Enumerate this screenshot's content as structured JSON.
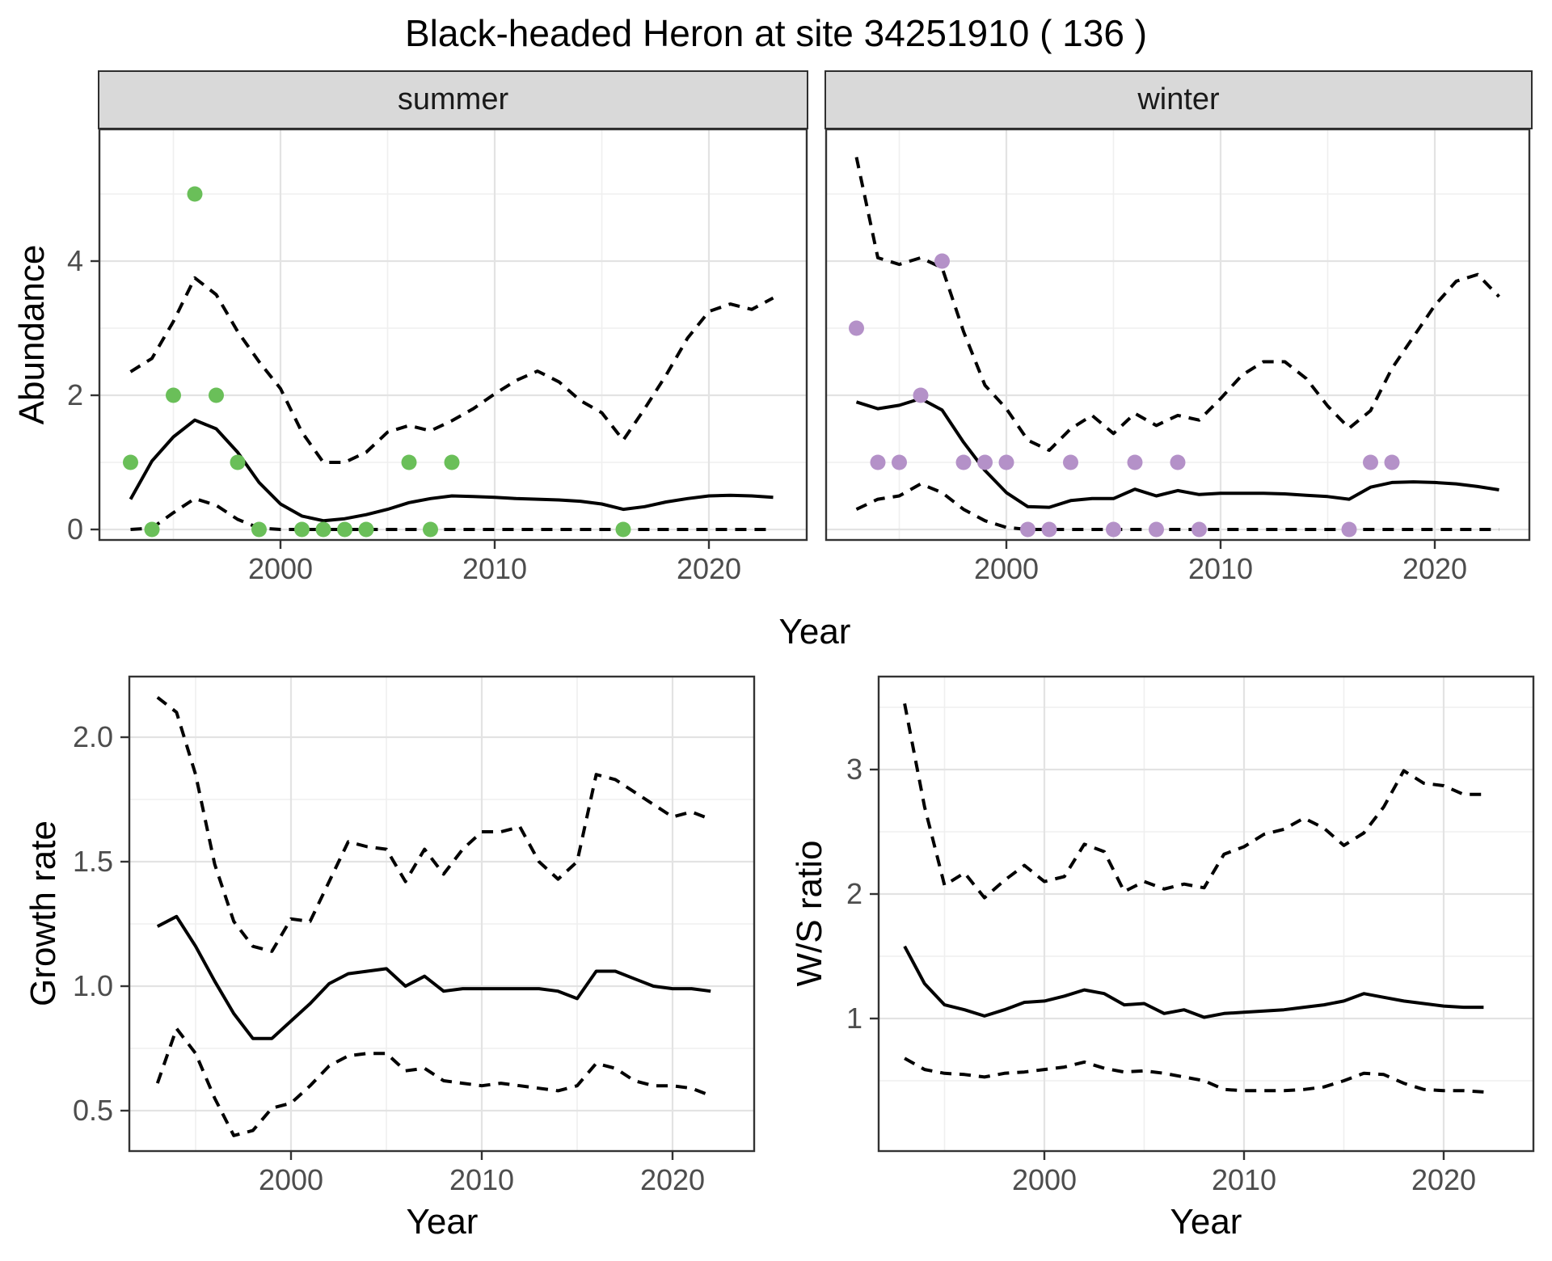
{
  "title": "Black-headed Heron at site 34251910 ( 136 )",
  "facets": [
    {
      "label": "summer"
    },
    {
      "label": "winter"
    }
  ],
  "axes": {
    "abundance": "Abundance",
    "growth": "Growth rate",
    "ws": "W/S ratio",
    "year": "Year"
  },
  "colors": {
    "summer_points": "#6abf59",
    "winter_points": "#b491c8",
    "line": "#000000",
    "strip_bg": "#d9d9d9",
    "panel_border": "#333333",
    "grid_major": "#e3e3e3",
    "grid_minor": "#efefef",
    "tick_text": "#4d4d4d"
  },
  "chart_data": [
    {
      "id": "abundance-summer",
      "type": "line",
      "facet": "summer",
      "ylabel": "Abundance",
      "xlabel": "Year",
      "x_ticks": [
        2000,
        2010,
        2020
      ],
      "x_tick_labels": [
        "2000",
        "2010",
        "2020"
      ],
      "x_minor": [
        1995,
        2005,
        2015
      ],
      "y_ticks": [
        0,
        2,
        4
      ],
      "y_tick_labels": [
        "0",
        "2",
        "4"
      ],
      "y_minor": [
        1,
        3,
        5
      ],
      "xlim": [
        1991.5,
        2024.6
      ],
      "ylim": [
        -0.16,
        5.95
      ],
      "series": [
        {
          "name": "fit",
          "style": "solid",
          "start_year": 1993,
          "values": [
            0.45,
            1.02,
            1.38,
            1.63,
            1.5,
            1.15,
            0.7,
            0.38,
            0.2,
            0.13,
            0.16,
            0.22,
            0.3,
            0.4,
            0.46,
            0.5,
            0.49,
            0.48,
            0.46,
            0.45,
            0.44,
            0.42,
            0.38,
            0.3,
            0.34,
            0.41,
            0.46,
            0.5,
            0.51,
            0.5,
            0.48
          ]
        },
        {
          "name": "upper_ci",
          "style": "dashed",
          "start_year": 1993,
          "values": [
            2.35,
            2.55,
            3.1,
            3.75,
            3.5,
            2.95,
            2.5,
            2.1,
            1.45,
            1.0,
            1.0,
            1.15,
            1.45,
            1.55,
            1.47,
            1.62,
            1.8,
            2.02,
            2.22,
            2.36,
            2.2,
            1.92,
            1.74,
            1.33,
            1.8,
            2.3,
            2.85,
            3.25,
            3.36,
            3.28,
            3.45
          ]
        },
        {
          "name": "lower_ci",
          "style": "dashed",
          "start_year": 1993,
          "values": [
            0.0,
            0.02,
            0.25,
            0.46,
            0.36,
            0.15,
            0.02,
            0,
            0,
            0,
            0,
            0,
            0,
            0,
            0,
            0,
            0,
            0,
            0,
            0,
            0,
            0,
            0,
            0,
            0,
            0,
            0,
            0,
            0,
            0,
            0
          ]
        }
      ],
      "points": {
        "color": "#6abf59",
        "data": [
          [
            1993,
            1
          ],
          [
            1994,
            0
          ],
          [
            1995,
            2
          ],
          [
            1996,
            5
          ],
          [
            1997,
            2
          ],
          [
            1998,
            1
          ],
          [
            1999,
            0
          ],
          [
            2001,
            0
          ],
          [
            2002,
            0
          ],
          [
            2003,
            0
          ],
          [
            2004,
            0
          ],
          [
            2006,
            1
          ],
          [
            2007,
            0
          ],
          [
            2008,
            1
          ],
          [
            2016,
            0
          ]
        ]
      }
    },
    {
      "id": "abundance-winter",
      "type": "line",
      "facet": "winter",
      "ylabel": "Abundance",
      "xlabel": "Year",
      "x_ticks": [
        2000,
        2010,
        2020
      ],
      "x_tick_labels": [
        "2000",
        "2010",
        "2020"
      ],
      "x_minor": [
        1995,
        2005,
        2015
      ],
      "y_ticks": [
        0,
        2,
        4
      ],
      "y_tick_labels": [
        "0",
        "2",
        "4"
      ],
      "y_minor": [
        1,
        3,
        5
      ],
      "xlim": [
        1991.5,
        2024.4
      ],
      "ylim": [
        -0.16,
        5.95
      ],
      "series": [
        {
          "name": "fit",
          "style": "solid",
          "start_year": 1993,
          "values": [
            1.9,
            1.8,
            1.85,
            1.95,
            1.78,
            1.3,
            0.88,
            0.55,
            0.34,
            0.33,
            0.43,
            0.46,
            0.46,
            0.6,
            0.5,
            0.58,
            0.52,
            0.54,
            0.54,
            0.54,
            0.53,
            0.51,
            0.49,
            0.45,
            0.63,
            0.7,
            0.71,
            0.7,
            0.68,
            0.64,
            0.59
          ]
        },
        {
          "name": "upper_ci",
          "style": "dashed",
          "start_year": 1993,
          "values": [
            5.55,
            4.05,
            3.95,
            4.05,
            3.9,
            2.95,
            2.15,
            1.8,
            1.33,
            1.18,
            1.5,
            1.7,
            1.43,
            1.73,
            1.55,
            1.7,
            1.63,
            1.95,
            2.3,
            2.5,
            2.5,
            2.25,
            1.84,
            1.51,
            1.77,
            2.4,
            2.87,
            3.34,
            3.7,
            3.8,
            3.47
          ]
        },
        {
          "name": "lower_ci",
          "style": "dashed",
          "start_year": 1993,
          "values": [
            0.3,
            0.45,
            0.5,
            0.68,
            0.55,
            0.3,
            0.13,
            0.03,
            0,
            0,
            0,
            0,
            0,
            0,
            0,
            0,
            0,
            0,
            0,
            0,
            0,
            0,
            0,
            0,
            0,
            0,
            0,
            0,
            0,
            0,
            0
          ]
        }
      ],
      "points": {
        "color": "#b491c8",
        "data": [
          [
            1993,
            3
          ],
          [
            1994,
            1
          ],
          [
            1995,
            1
          ],
          [
            1996,
            2
          ],
          [
            1997,
            4
          ],
          [
            1998,
            1
          ],
          [
            1999,
            1
          ],
          [
            2000,
            1
          ],
          [
            2001,
            0
          ],
          [
            2002,
            0
          ],
          [
            2003,
            1
          ],
          [
            2005,
            0
          ],
          [
            2006,
            1
          ],
          [
            2007,
            0
          ],
          [
            2008,
            1
          ],
          [
            2009,
            0
          ],
          [
            2016,
            0
          ],
          [
            2017,
            1
          ],
          [
            2018,
            1
          ]
        ]
      }
    },
    {
      "id": "growth-rate",
      "type": "line",
      "facet": null,
      "ylabel": "Growth rate",
      "xlabel": "Year",
      "x_ticks": [
        2000,
        2010,
        2020
      ],
      "x_tick_labels": [
        "2000",
        "2010",
        "2020"
      ],
      "x_minor": [
        1995,
        2005,
        2015
      ],
      "y_ticks": [
        0.5,
        1.0,
        1.5,
        2.0
      ],
      "y_tick_labels": [
        "0.5",
        "1.0",
        "1.5",
        "2.0"
      ],
      "y_minor": [
        0.75,
        1.25,
        1.75
      ],
      "xlim": [
        1991.5,
        2024.3
      ],
      "ylim": [
        0.34,
        2.24
      ],
      "series": [
        {
          "name": "fit",
          "style": "solid",
          "start_year": 1993,
          "values": [
            1.24,
            1.28,
            1.16,
            1.02,
            0.89,
            0.79,
            0.79,
            0.86,
            0.93,
            1.01,
            1.05,
            1.06,
            1.07,
            1.0,
            1.04,
            0.98,
            0.99,
            0.99,
            0.99,
            0.99,
            0.99,
            0.98,
            0.95,
            1.06,
            1.06,
            1.03,
            1.0,
            0.99,
            0.99,
            0.98
          ]
        },
        {
          "name": "upper_ci",
          "style": "dashed",
          "start_year": 1993,
          "values": [
            2.16,
            2.1,
            1.85,
            1.49,
            1.26,
            1.16,
            1.14,
            1.27,
            1.26,
            1.42,
            1.58,
            1.56,
            1.55,
            1.42,
            1.55,
            1.45,
            1.55,
            1.62,
            1.62,
            1.64,
            1.5,
            1.43,
            1.5,
            1.85,
            1.83,
            1.78,
            1.73,
            1.68,
            1.7,
            1.67
          ]
        },
        {
          "name": "lower_ci",
          "style": "dashed",
          "start_year": 1993,
          "values": [
            0.61,
            0.83,
            0.73,
            0.55,
            0.4,
            0.42,
            0.51,
            0.53,
            0.6,
            0.68,
            0.72,
            0.73,
            0.73,
            0.66,
            0.67,
            0.62,
            0.61,
            0.6,
            0.61,
            0.6,
            0.59,
            0.58,
            0.6,
            0.69,
            0.67,
            0.62,
            0.6,
            0.6,
            0.59,
            0.56
          ]
        }
      ],
      "points": null
    },
    {
      "id": "ws-ratio",
      "type": "line",
      "facet": null,
      "ylabel": "W/S ratio",
      "xlabel": "Year",
      "x_ticks": [
        2000,
        2010,
        2020
      ],
      "x_tick_labels": [
        "2000",
        "2010",
        "2020"
      ],
      "x_minor": [
        1995,
        2005,
        2015
      ],
      "y_ticks": [
        1,
        2,
        3
      ],
      "y_tick_labels": [
        "1",
        "2",
        "3"
      ],
      "y_minor": [
        0.5,
        1.5,
        2.5,
        3.5
      ],
      "xlim": [
        1991.7,
        2024.5
      ],
      "ylim": [
        0.33,
        3.75
      ],
      "series": [
        {
          "name": "fit",
          "style": "solid",
          "start_year": 1993,
          "values": [
            1.58,
            1.28,
            1.11,
            1.07,
            1.02,
            1.07,
            1.13,
            1.14,
            1.18,
            1.23,
            1.2,
            1.11,
            1.12,
            1.04,
            1.07,
            1.01,
            1.04,
            1.05,
            1.06,
            1.07,
            1.09,
            1.11,
            1.14,
            1.2,
            1.17,
            1.14,
            1.12,
            1.1,
            1.09,
            1.09
          ]
        },
        {
          "name": "upper_ci",
          "style": "dashed",
          "start_year": 1993,
          "values": [
            3.53,
            2.7,
            2.07,
            2.17,
            1.97,
            2.11,
            2.23,
            2.1,
            2.14,
            2.4,
            2.34,
            2.02,
            2.1,
            2.04,
            2.08,
            2.05,
            2.32,
            2.38,
            2.48,
            2.52,
            2.61,
            2.53,
            2.39,
            2.49,
            2.7,
            2.99,
            2.89,
            2.87,
            2.8,
            2.8
          ]
        },
        {
          "name": "lower_ci",
          "style": "dashed",
          "start_year": 1993,
          "values": [
            0.68,
            0.59,
            0.56,
            0.55,
            0.53,
            0.56,
            0.57,
            0.59,
            0.61,
            0.65,
            0.6,
            0.57,
            0.58,
            0.56,
            0.53,
            0.5,
            0.43,
            0.42,
            0.42,
            0.42,
            0.43,
            0.45,
            0.5,
            0.56,
            0.55,
            0.48,
            0.43,
            0.42,
            0.42,
            0.41
          ]
        }
      ],
      "points": null
    }
  ]
}
